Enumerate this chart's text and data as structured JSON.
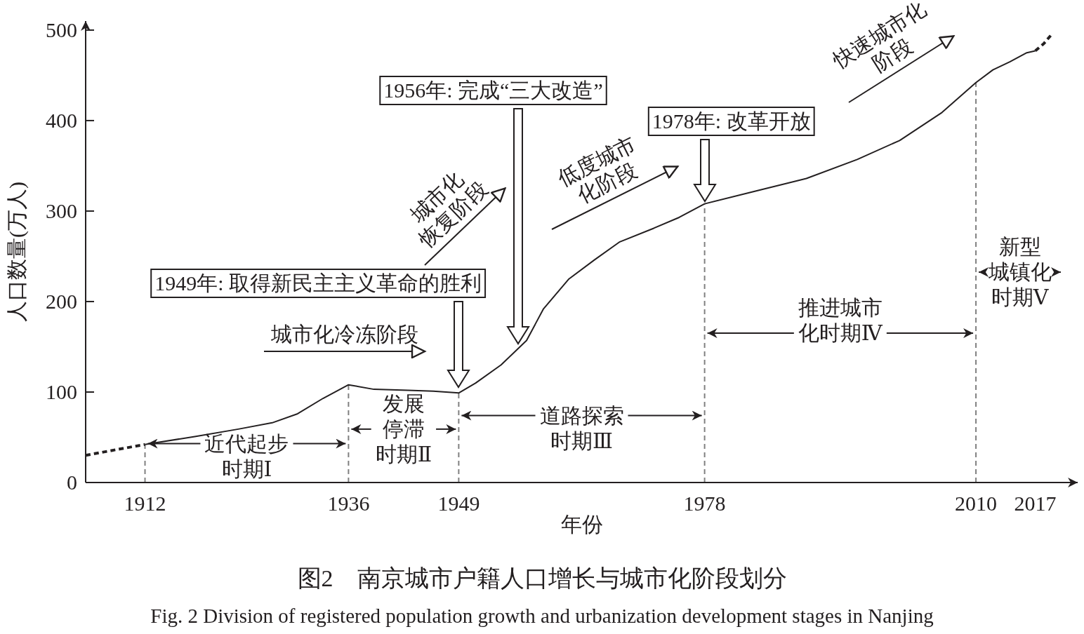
{
  "chart_data": {
    "type": "line",
    "title": "图2　南京城市户籍人口增长与城市化阶段划分",
    "subtitle": "Fig. 2   Division of registered population growth and urbanization development stages in Nanjing",
    "xlabel": "年份",
    "ylabel": "人口数量(万人)",
    "xlim": [
      1905,
      2022
    ],
    "ylim": [
      0,
      510
    ],
    "xticks": [
      1912,
      1936,
      1949,
      1978,
      2010,
      2017
    ],
    "yticks": [
      0,
      100,
      200,
      300,
      400,
      500
    ],
    "series": [
      {
        "color": "#231f20",
        "line_style": "solid",
        "x": [
          1912,
          1918,
          1923,
          1927,
          1930,
          1933,
          1936,
          1939,
          1943,
          1946,
          1949,
          1951,
          1954,
          1957,
          1959,
          1962,
          1965,
          1968,
          1972,
          1975,
          1978,
          1984,
          1990,
          1996,
          2001,
          2006,
          2010,
          2012,
          2014,
          2016,
          2017
        ],
        "values": [
          42,
          51,
          59,
          66,
          76,
          93,
          108,
          103,
          102,
          101,
          99,
          110,
          130,
          157,
          192,
          225,
          246,
          266,
          281,
          293,
          308,
          322,
          336,
          357,
          378,
          409,
          442,
          456,
          465,
          475,
          477
        ]
      },
      {
        "color": "#231f20",
        "line_style": "dashed",
        "x": [
          1905,
          1909,
          1912
        ],
        "values": [
          30,
          37,
          42
        ]
      },
      {
        "color": "#231f20",
        "line_style": "dashed",
        "x": [
          2017,
          2018,
          2019
        ],
        "values": [
          477,
          485,
          496
        ]
      }
    ],
    "ref_lines": [
      {
        "axis": "x",
        "value": 1912,
        "color": "#808080",
        "line_style": "dashed"
      },
      {
        "axis": "x",
        "value": 1936,
        "color": "#808080",
        "line_style": "dashed"
      },
      {
        "axis": "x",
        "value": 1949,
        "color": "#808080",
        "line_style": "dashed"
      },
      {
        "axis": "x",
        "value": 1978,
        "color": "#808080",
        "line_style": "dashed"
      },
      {
        "axis": "x",
        "value": 2010,
        "color": "#808080",
        "line_style": "dashed"
      }
    ],
    "annotations": [
      "1949年: 取得新民主主义革命的胜利",
      "1956年: 完成“三大改造”",
      "1978年: 改革开放",
      "城市化冷冻阶段",
      "城市化恢复阶段",
      "低度城市化阶段",
      "快速城市化阶段",
      {
        "text": "近代起步时期Ⅰ",
        "x": 1936,
        "y": 43
      },
      {
        "text": "发展停滞时期Ⅱ",
        "x": 1949,
        "y": 59
      },
      {
        "text": "道路探索时期Ⅲ",
        "x": 1978,
        "y": 74
      },
      {
        "text": "推进城市化时期Ⅳ",
        "x": 2010,
        "y": 165
      },
      "新型城镇化时期Ⅴ"
    ]
  }
}
